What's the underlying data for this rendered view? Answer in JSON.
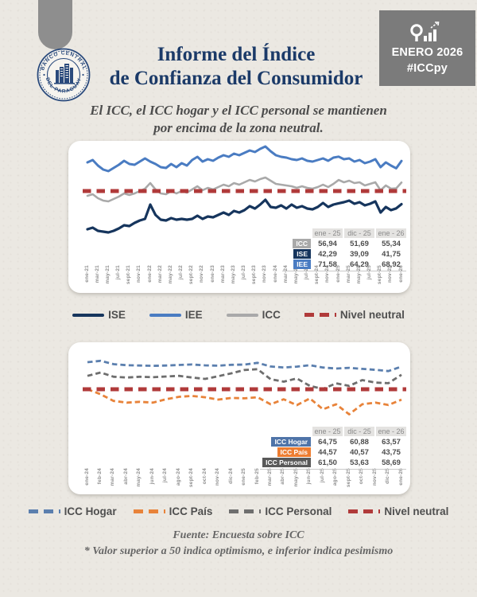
{
  "header": {
    "seal_top": "BANCO CENTRAL",
    "seal_bottom": "DEL PARAGUAY",
    "title_line1": "Informe del Índice",
    "title_line2": "de Confianza del Consumidor",
    "badge_month": "ENERO 2026",
    "badge_hashtag": "#ICCpy"
  },
  "subtitle": {
    "line1": "El ICC, el ICC hogar y el ICC personal se mantienen",
    "line2": "por encima de la zona neutral."
  },
  "footer": {
    "line1": "Fuente: Encuesta sobre ICC",
    "line2": "* Valor superior a 50 indica optimismo, e inferior indica pesimismo"
  },
  "colors": {
    "paper": "#ebe8e2",
    "panel": "#ffffff",
    "title_navy": "#1b3a68",
    "ribbon_gray": "#8e8e8e",
    "badge_gray": "#7b7b7b",
    "ise_navy": "#16355d",
    "iee_blue": "#4a7cc2",
    "icc_gray": "#a9a9a9",
    "neutral_red": "#b03a3a",
    "hogar_blue": "#4f74a8",
    "pais_orange": "#ed7d31",
    "personal_gray": "#6e6e6e"
  },
  "chart_data": [
    {
      "type": "line",
      "title": "",
      "xlabel": "",
      "ylabel": "",
      "ylim": [
        20,
        82
      ],
      "grid": false,
      "neutral": {
        "label": "Nivel neutral",
        "value": 50,
        "color": "#b03a3a"
      },
      "neutral_on_top": false,
      "x_tick_labels": [
        "ene-21",
        "mar-21",
        "may-21",
        "jul-21",
        "sept-21",
        "nov-21",
        "ene-22",
        "mar-22",
        "may-22",
        "jul-22",
        "sept-22",
        "nov-22",
        "ene-23",
        "mar-23",
        "may-23",
        "jul-23",
        "sept-23",
        "nov-23",
        "ene-24",
        "mar-24",
        "may-24",
        "jul-24",
        "sept-24",
        "nov-24",
        "ene-25",
        "mar-25",
        "may-25",
        "jul-25",
        "sept-25",
        "nov-25",
        "ene-26"
      ],
      "series": [
        {
          "name": "ICC",
          "color": "#a9a9a9",
          "dash": "solid",
          "width": 2.6,
          "values": [
            47.0,
            48.0,
            45.5,
            44.0,
            43.5,
            45.0,
            46.5,
            48.5,
            47.5,
            48.5,
            50.0,
            51.5,
            55.0,
            51.0,
            48.5,
            48.0,
            50.0,
            48.5,
            50.0,
            49.0,
            51.0,
            53.0,
            50.5,
            52.0,
            51.0,
            52.5,
            54.0,
            53.0,
            55.0,
            54.0,
            55.5,
            57.0,
            56.0,
            57.5,
            58.5,
            56.5,
            54.5,
            54.0,
            53.5,
            53.0,
            52.0,
            53.0,
            52.0,
            51.5,
            52.5,
            54.0,
            52.5,
            54.5,
            56.94,
            55.5,
            56.5,
            55.0,
            55.5,
            53.5,
            54.5,
            55.5,
            50.5,
            53.5,
            51.5,
            51.69,
            55.34
          ]
        },
        {
          "name": "IEE",
          "color": "#4a7cc2",
          "dash": "solid",
          "width": 3,
          "values": [
            68.0,
            69.5,
            66.0,
            63.5,
            62.5,
            64.5,
            66.5,
            69.0,
            67.0,
            66.5,
            68.5,
            70.5,
            68.5,
            67.0,
            65.0,
            64.5,
            67.0,
            65.0,
            67.5,
            66.0,
            69.5,
            71.5,
            68.5,
            70.0,
            69.0,
            71.0,
            72.5,
            71.5,
            73.5,
            72.5,
            74.0,
            75.5,
            74.5,
            76.5,
            78.0,
            75.0,
            72.5,
            71.5,
            71.0,
            70.0,
            69.5,
            70.5,
            69.0,
            68.5,
            69.5,
            70.5,
            69.0,
            71.0,
            71.58,
            70.0,
            70.5,
            68.5,
            69.5,
            67.5,
            68.5,
            70.0,
            65.0,
            68.0,
            66.0,
            64.29,
            68.92
          ]
        },
        {
          "name": "ISE",
          "color": "#16355d",
          "dash": "solid",
          "width": 3.2,
          "values": [
            26.0,
            27.0,
            25.0,
            24.5,
            24.0,
            25.0,
            26.5,
            28.5,
            28.0,
            30.0,
            31.5,
            32.5,
            41.5,
            35.0,
            32.0,
            31.5,
            33.0,
            32.0,
            32.5,
            32.0,
            32.5,
            34.5,
            32.5,
            34.0,
            33.5,
            35.0,
            36.5,
            35.0,
            37.5,
            36.5,
            38.0,
            40.5,
            39.0,
            41.5,
            44.5,
            40.0,
            39.5,
            41.0,
            39.0,
            41.5,
            39.5,
            40.5,
            39.0,
            38.5,
            40.0,
            42.5,
            40.0,
            41.5,
            42.29,
            43.0,
            44.0,
            42.0,
            43.0,
            41.0,
            42.0,
            43.5,
            36.5,
            40.0,
            38.0,
            39.09,
            41.75
          ]
        }
      ],
      "legend": [
        {
          "label": "ISE",
          "color": "#16355d",
          "style": "solid"
        },
        {
          "label": "IEE",
          "color": "#4a7cc2",
          "style": "solid"
        },
        {
          "label": "ICC",
          "color": "#a9a9a9",
          "style": "solid"
        },
        {
          "label": "Nivel neutral",
          "color": "#b03a3a",
          "style": "dashed"
        }
      ],
      "summary_table": {
        "col_headers": [
          "ene - 25",
          "dic - 25",
          "ene - 26"
        ],
        "rows": [
          {
            "label": "ICC",
            "badge_color": "#a9a9a9",
            "values": [
              "56,94",
              "51,69",
              "55,34"
            ]
          },
          {
            "label": "ISE",
            "badge_color": "#16355d",
            "values": [
              "42,29",
              "39,09",
              "41,75"
            ]
          },
          {
            "label": "IEE",
            "badge_color": "#4a7cc2",
            "values": [
              "71,58",
              "64,29",
              "68,92"
            ]
          }
        ]
      }
    },
    {
      "type": "line",
      "title": "",
      "xlabel": "",
      "ylabel": "",
      "ylim": [
        30,
        72
      ],
      "grid": false,
      "neutral": {
        "label": "Nivel neutral",
        "value": 50,
        "color": "#b03a3a"
      },
      "neutral_on_top": true,
      "x_tick_labels": [
        "ene-24",
        "feb-24",
        "mar-24",
        "abr-24",
        "may-24",
        "jun-24",
        "jul-24",
        "ago-24",
        "sept-24",
        "oct-24",
        "nov-24",
        "dic-24",
        "ene-25",
        "feb-25",
        "mar-25",
        "abr-25",
        "may-25",
        "jun-25",
        "jul-25",
        "ago-25",
        "sept-25",
        "oct-25",
        "nov-25",
        "dic-25",
        "ene-26"
      ],
      "series": [
        {
          "name": "ICC Personal",
          "color": "#6e6e6e",
          "dash": "dashed",
          "width": 2.8,
          "values": [
            58.0,
            60.0,
            57.5,
            57.0,
            57.5,
            57.2,
            57.6,
            58.0,
            57.0,
            56.2,
            57.8,
            59.5,
            61.5,
            62.0,
            56.0,
            54.5,
            56.5,
            52.0,
            50.2,
            53.5,
            52.0,
            55.5,
            54.0,
            53.63,
            58.69
          ]
        },
        {
          "name": "ICC Hogar",
          "color": "#5b7fae",
          "dash": "dashed",
          "width": 2.8,
          "values": [
            66.2,
            67.0,
            65.0,
            64.4,
            64.2,
            64.0,
            64.2,
            64.5,
            64.8,
            64.3,
            64.1,
            64.6,
            64.75,
            65.8,
            63.6,
            63.0,
            63.5,
            64.4,
            63.0,
            62.4,
            62.8,
            62.2,
            61.6,
            60.88,
            63.57
          ]
        },
        {
          "name": "ICC País",
          "color": "#e8833a",
          "dash": "dashed",
          "width": 2.8,
          "values": [
            50.0,
            47.0,
            43.0,
            42.0,
            42.5,
            42.0,
            44.0,
            45.5,
            46.0,
            45.2,
            43.8,
            44.8,
            44.57,
            45.2,
            41.0,
            44.0,
            40.5,
            44.5,
            38.0,
            41.0,
            35.0,
            41.0,
            42.0,
            40.57,
            43.75
          ]
        }
      ],
      "legend": [
        {
          "label": "ICC Hogar",
          "color": "#5b7fae",
          "style": "dashed"
        },
        {
          "label": "ICC País",
          "color": "#e8833a",
          "style": "dashed"
        },
        {
          "label": "ICC Personal",
          "color": "#6e6e6e",
          "style": "dashed"
        },
        {
          "label": "Nivel neutral",
          "color": "#b03a3a",
          "style": "dashed"
        }
      ],
      "summary_table": {
        "col_headers": [
          "ene - 25",
          "dic - 25",
          "ene - 26"
        ],
        "rows": [
          {
            "label": "ICC Hogar",
            "badge_color": "#4f74a8",
            "values": [
              "64,75",
              "60,88",
              "63,57"
            ]
          },
          {
            "label": "ICC País",
            "badge_color": "#ed7d31",
            "values": [
              "44,57",
              "40,57",
              "43,75"
            ]
          },
          {
            "label": "ICC Personal",
            "badge_color": "#595959",
            "values": [
              "61,50",
              "53,63",
              "58,69"
            ]
          }
        ]
      }
    }
  ]
}
